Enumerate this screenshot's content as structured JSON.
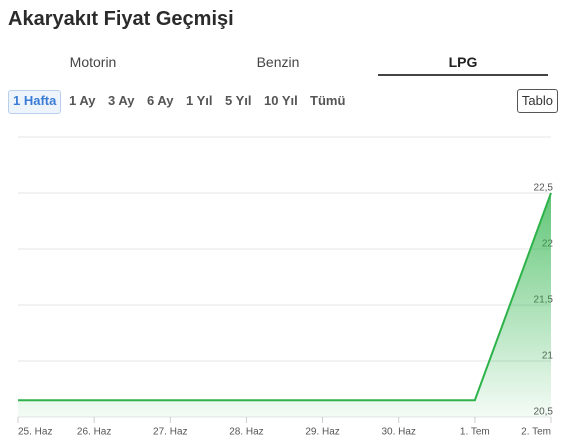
{
  "header": {
    "title": "Akaryakıt Fiyat Geçmişi"
  },
  "tabs": {
    "items": [
      "Motorin",
      "Benzin",
      "LPG"
    ],
    "selected": 2
  },
  "ranges": {
    "items": [
      "1 Hafta",
      "1 Ay",
      "3 Ay",
      "6 Ay",
      "1 Yıl",
      "5 Yıl",
      "10 Yıl",
      "Tümü"
    ],
    "selected": 0
  },
  "table_button": "Tablo",
  "chart_data": {
    "type": "area",
    "categories": [
      "25. Haz",
      "26. Haz",
      "27. Haz",
      "28. Haz",
      "29. Haz",
      "30. Haz",
      "1. Tem",
      "2. Tem"
    ],
    "values": [
      20.65,
      20.65,
      20.65,
      20.65,
      20.65,
      20.65,
      20.65,
      22.5
    ],
    "color": "#2db34a",
    "ylim": [
      20.5,
      23
    ],
    "yticks": [
      {
        "value": 20.5,
        "label": "20,5"
      },
      21,
      {
        "value": 21.5,
        "label": "21,5"
      },
      22,
      {
        "value": 22.5,
        "label": "22,5"
      }
    ],
    "grid": true
  }
}
